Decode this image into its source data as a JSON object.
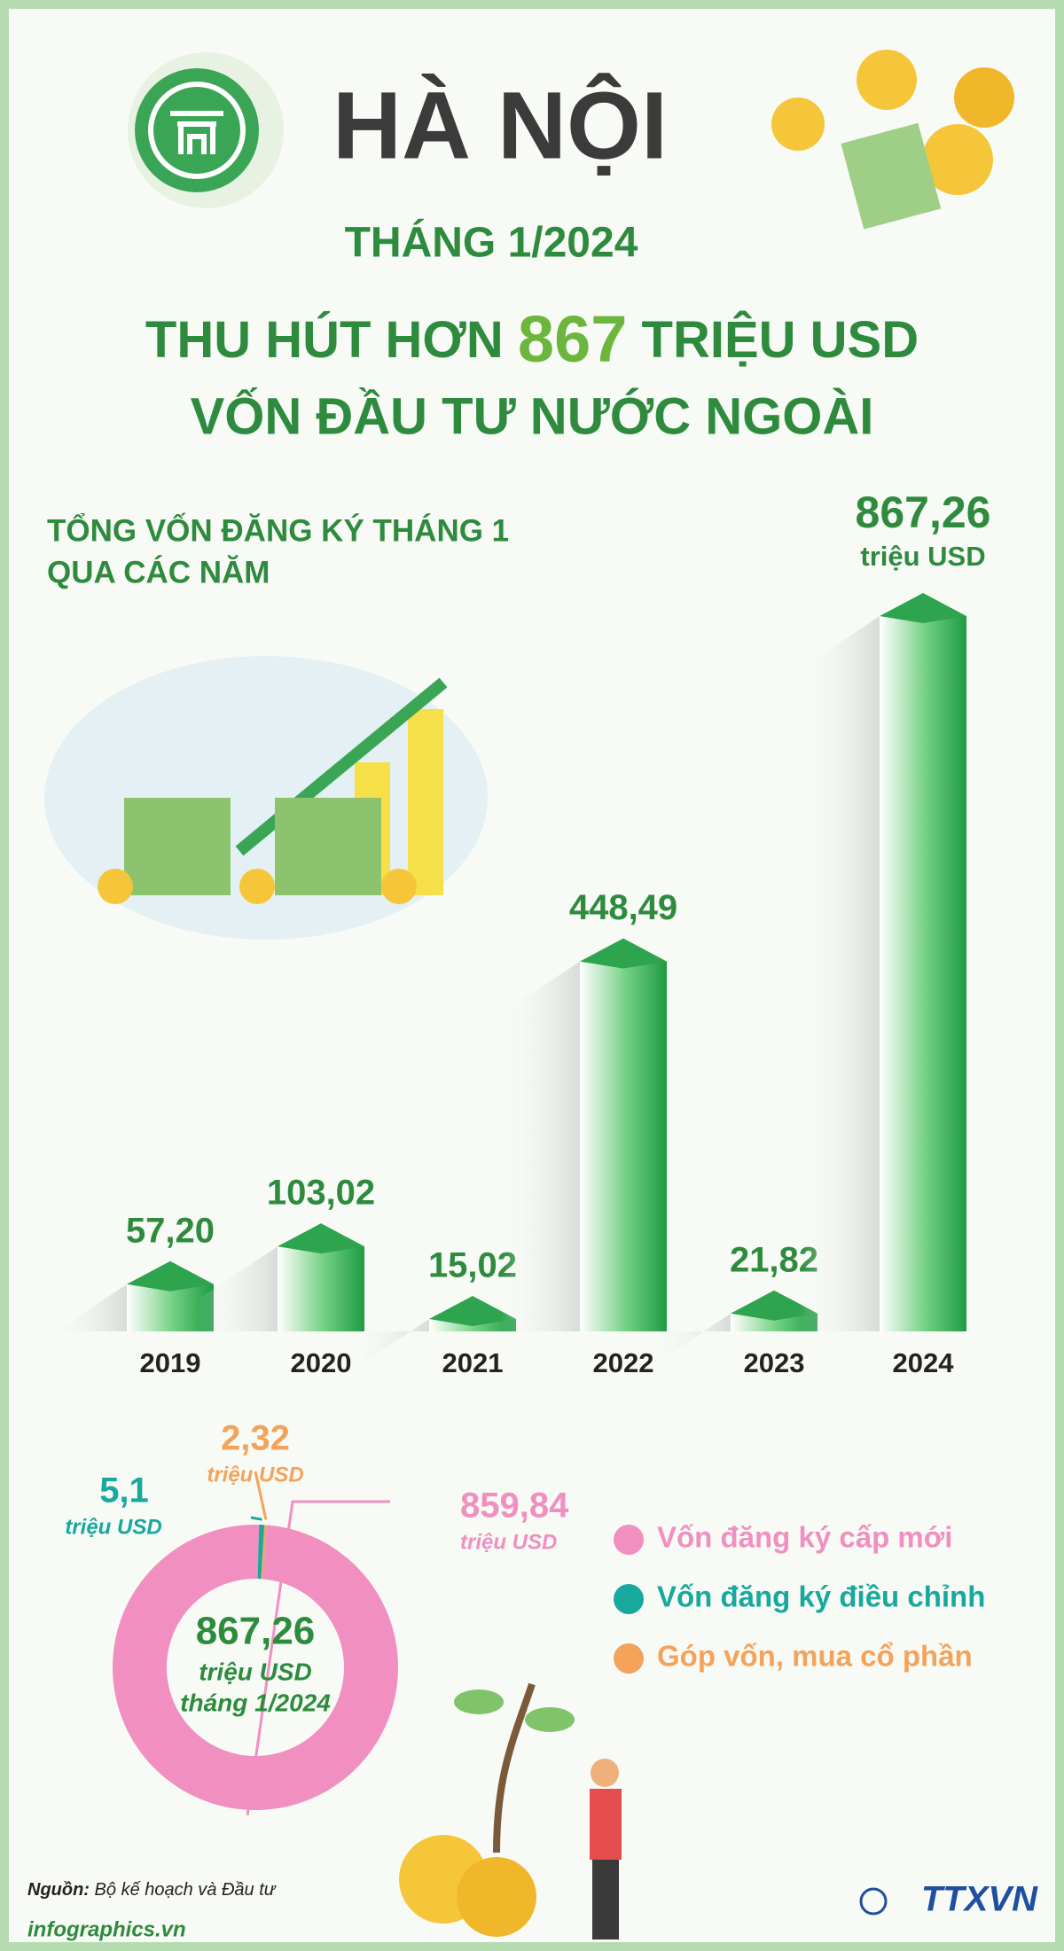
{
  "header": {
    "city": "HÀ NỘI",
    "period": "THÁNG 1/2024",
    "headline_prefix": "THU HÚT HƠN",
    "headline_number": "867",
    "headline_suffix": "TRIỆU USD",
    "headline_line2": "VỐN ĐẦU TƯ NƯỚC NGOÀI"
  },
  "chart_data": [
    {
      "type": "bar",
      "title": [
        "TỔNG VỐN ĐĂNG KÝ THÁNG 1",
        "QUA CÁC NĂM"
      ],
      "unit": "triệu USD",
      "categories": [
        "2019",
        "2020",
        "2021",
        "2022",
        "2023",
        "2024"
      ],
      "values": [
        57.2,
        103.02,
        15.02,
        448.49,
        21.82,
        867.26
      ],
      "value_labels": [
        "57,20",
        "103,02",
        "15,02",
        "448,49",
        "21,82",
        "867,26"
      ],
      "color": "#2ea44f"
    },
    {
      "type": "donut",
      "categories": [
        "Vốn đăng ký cấp mới",
        "Vốn đăng ký điều chỉnh",
        "Góp vốn, mua cổ phần"
      ],
      "values": [
        859.84,
        5.1,
        2.32
      ],
      "value_labels": [
        "859,84",
        "5,1",
        "2,32"
      ],
      "unit": "triệu USD",
      "colors": [
        "#f18fc1",
        "#17a89e",
        "#f3a35a"
      ],
      "total": 867.26,
      "total_label": "867,26",
      "center_unit": "triệu USD",
      "center_period": "tháng 1/2024"
    }
  ],
  "footer": {
    "source_label": "Nguồn:",
    "source": "Bộ kế hoạch và Đầu tư",
    "site": "infographics.vn",
    "agency": "TTXVN"
  }
}
